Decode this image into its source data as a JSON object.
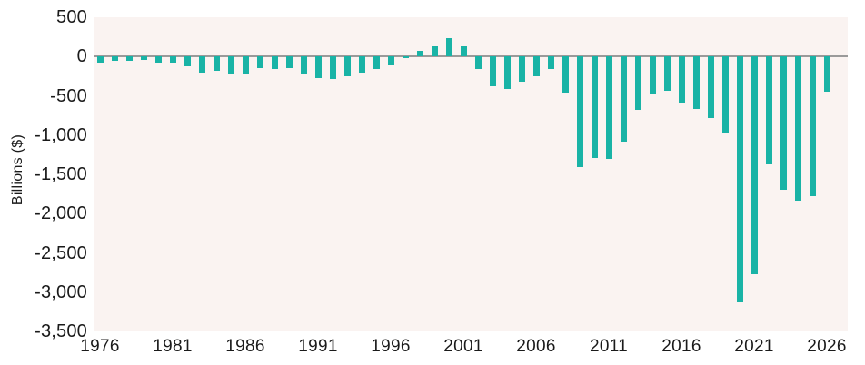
{
  "chart_data": {
    "type": "bar",
    "ylabel": "Billions ($)",
    "xlabel": "",
    "x": [
      1976,
      1977,
      1978,
      1979,
      1980,
      1981,
      1982,
      1983,
      1984,
      1985,
      1986,
      1987,
      1988,
      1989,
      1990,
      1991,
      1992,
      1993,
      1994,
      1995,
      1996,
      1997,
      1998,
      1999,
      2000,
      2001,
      2002,
      2003,
      2004,
      2005,
      2006,
      2007,
      2008,
      2009,
      2010,
      2011,
      2012,
      2013,
      2014,
      2015,
      2016,
      2017,
      2018,
      2019,
      2020,
      2021,
      2022,
      2023,
      2024,
      2025,
      2026
    ],
    "values": [
      -74,
      -54,
      -59,
      -41,
      -74,
      -79,
      -128,
      -208,
      -185,
      -212,
      -221,
      -150,
      -155,
      -153,
      -221,
      -269,
      -290,
      -255,
      -203,
      -164,
      -107,
      -22,
      69,
      126,
      236,
      128,
      -158,
      -378,
      -413,
      -318,
      -248,
      -161,
      -459,
      -1413,
      -1294,
      -1300,
      -1087,
      -680,
      -485,
      -442,
      -585,
      -665,
      -779,
      -984,
      -3132,
      -2772,
      -1375,
      -1694,
      -1833,
      -1775,
      -445
    ],
    "ylim": [
      -3500,
      500
    ],
    "yticks": [
      500,
      0,
      -500,
      -1000,
      -1500,
      -2000,
      -2500,
      -3000,
      -3500
    ],
    "ytick_labels": [
      "500",
      "0",
      "-500",
      "-1,000",
      "-1,500",
      "-2,000",
      "-2,500",
      "-3,000",
      "-3,500"
    ],
    "xticks": [
      1976,
      1981,
      1986,
      1991,
      1996,
      2001,
      2006,
      2011,
      2016,
      2021,
      2026
    ],
    "grid": false,
    "legend_position": "none",
    "colors": {
      "bar": "#19b3a6",
      "plot_background": "#faf3f1",
      "zero_line": "#9a9a9a",
      "text": "#1a1a1a",
      "page_background": "#ffffff"
    }
  }
}
